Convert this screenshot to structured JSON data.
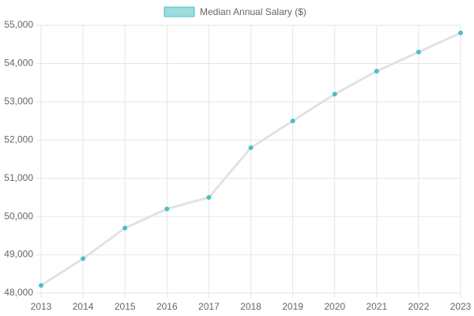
{
  "chart_data": {
    "type": "line",
    "categories": [
      "2013",
      "2014",
      "2015",
      "2016",
      "2017",
      "2018",
      "2019",
      "2020",
      "2021",
      "2022",
      "2023"
    ],
    "series": [
      {
        "name": "Median Annual Salary ($)",
        "color": "#4bc0c0",
        "line_color": "#e2e2e2",
        "values": [
          48200,
          48900,
          49700,
          50200,
          50500,
          51800,
          52500,
          53200,
          53800,
          54300,
          54800
        ]
      }
    ],
    "ylim": [
      48000,
      55000
    ],
    "yticks": [
      {
        "value": 48000,
        "label": "48,000"
      },
      {
        "value": 49000,
        "label": "49,000"
      },
      {
        "value": 50000,
        "label": "50,000"
      },
      {
        "value": 51000,
        "label": "51,000"
      },
      {
        "value": 52000,
        "label": "52,000"
      },
      {
        "value": 53000,
        "label": "53,000"
      },
      {
        "value": 54000,
        "label": "54,000"
      },
      {
        "value": 55000,
        "label": "55,000"
      }
    ],
    "grid": true,
    "legend": "top"
  }
}
